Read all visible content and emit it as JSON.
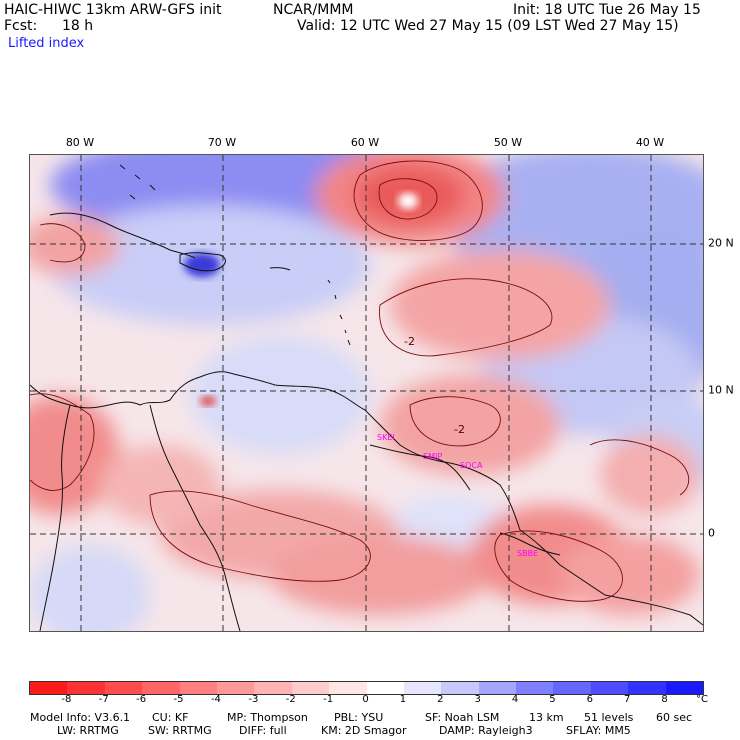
{
  "header": {
    "model": "HAIC-HIWC 13km ARW-GFS init",
    "org": "NCAR/MMM",
    "init": "Init: 18 UTC Tue 26 May 15",
    "fcst_label": "Fcst:",
    "fcst_value": "18 h",
    "valid": "Valid: 12 UTC Wed 27 May 15 (09 LST Wed 27 May 15)",
    "field": "Lifted index"
  },
  "map": {
    "lon_labels": [
      "80 W",
      "70 W",
      "60 W",
      "50 W",
      "40 W"
    ],
    "lat_labels": [
      "20 N",
      "10 N",
      "0"
    ],
    "stations": [
      "SKEI",
      "SMJP",
      "SOCA",
      "SBBE"
    ],
    "contour_labels": [
      "-2",
      "-2"
    ]
  },
  "colorbar": {
    "unit": "°C",
    "ticks": [
      "-8",
      "-7",
      "-6",
      "-5",
      "-4",
      "-3",
      "-2",
      "-1",
      "0",
      "1",
      "2",
      "3",
      "4",
      "5",
      "6",
      "7",
      "8"
    ],
    "colors": [
      "#ff1a1a",
      "#ff3333",
      "#ff4d4d",
      "#ff6666",
      "#ff8080",
      "#ff9999",
      "#ffb3b3",
      "#ffcccc",
      "#ffe6e6",
      "#ffffff",
      "#e6e6ff",
      "#c8c8ff",
      "#a6a6ff",
      "#8080ff",
      "#6666ff",
      "#4d4dff",
      "#3333ff",
      "#1a1aff"
    ]
  },
  "footer": {
    "line1": [
      "Model Info: V3.6.1",
      "CU: KF",
      "MP: Thompson",
      "PBL: YSU",
      "SF: Noah LSM",
      "13 km",
      "51 levels",
      "60 sec"
    ],
    "line2": [
      "LW: RRTMG",
      "SW: RRTMG",
      "DIFF: full",
      "KM: 2D Smagor",
      "DAMP: Rayleigh3",
      "SFLAY: MM5"
    ]
  }
}
